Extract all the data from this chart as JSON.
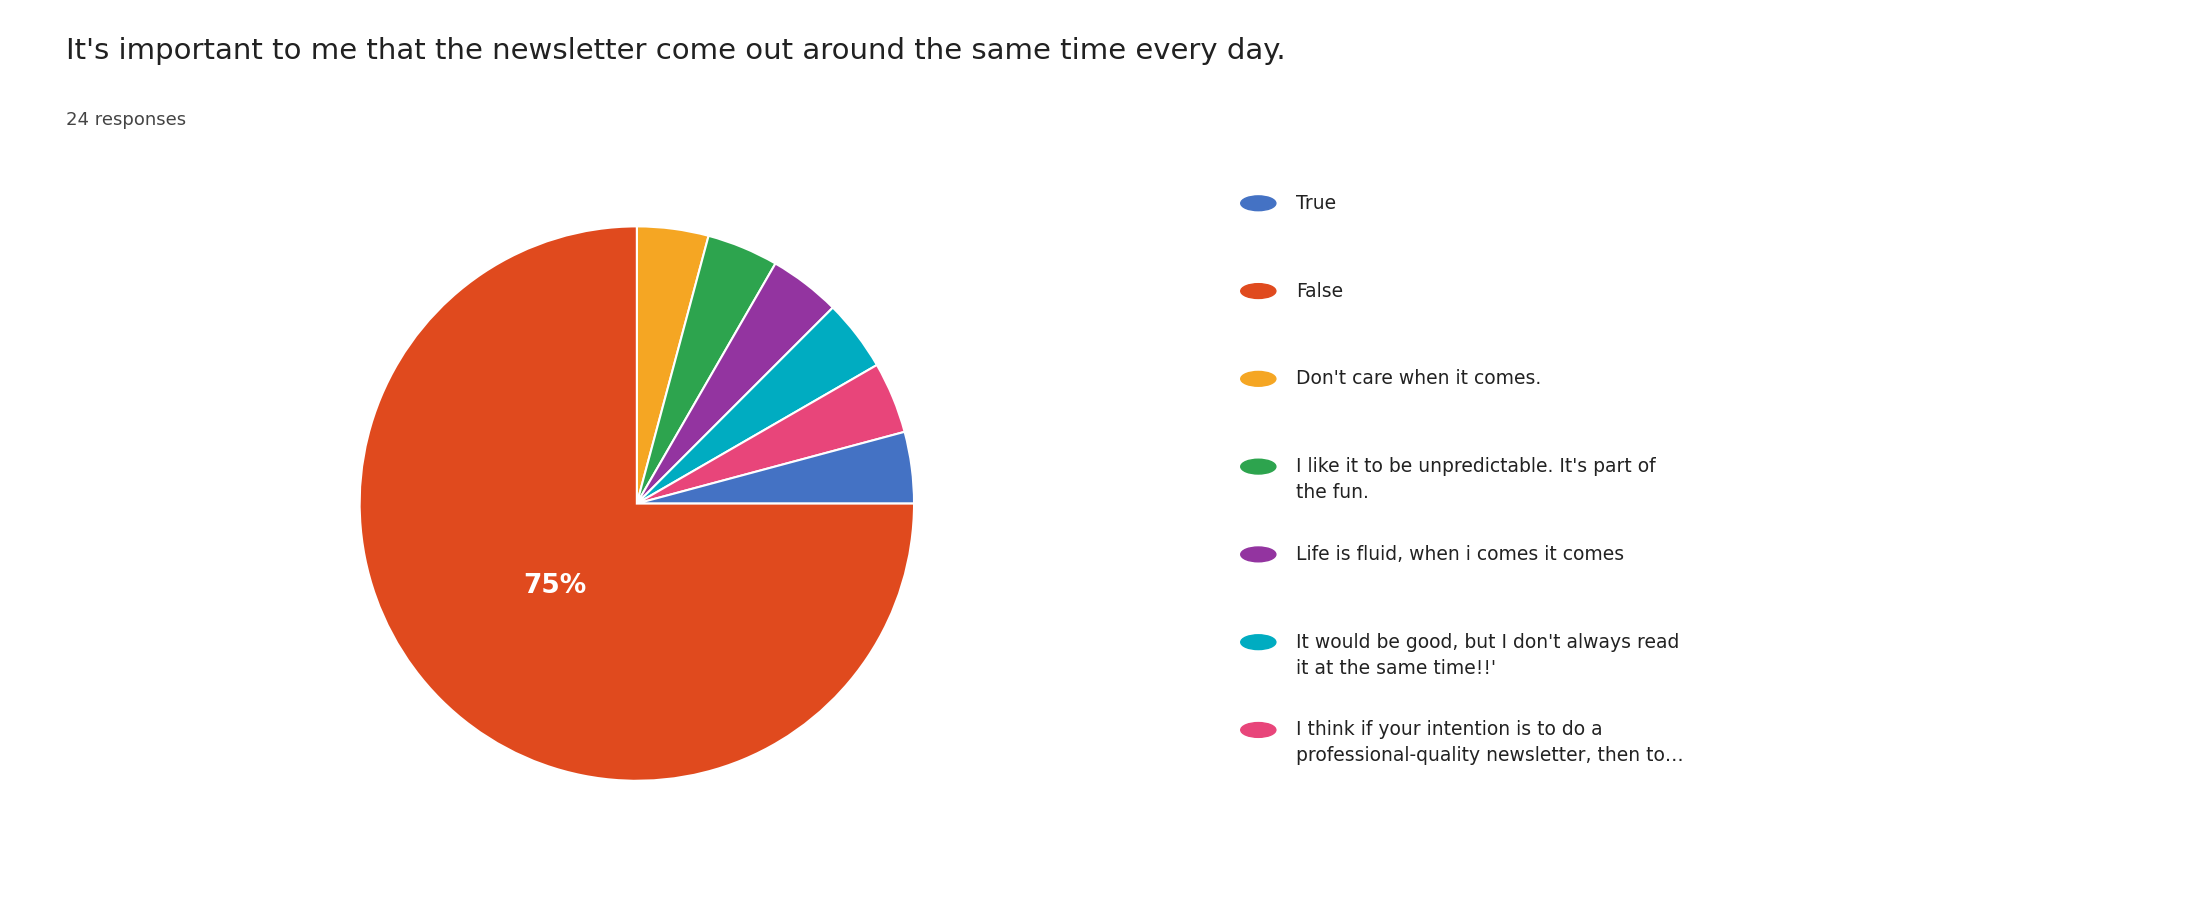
{
  "title": "It's important to me that the newsletter come out around the same time every day.",
  "subtitle": "24 responses",
  "legend_labels": [
    "True",
    "False",
    "Don't care when it comes.",
    "I like it to be unpredictable. It's part of\nthe fun.",
    "Life is fluid, when i comes it comes",
    "It would be good, but I don't always read\nit at the same time!!'",
    "I think if your intention is to do a\nprofessional-quality newsletter, then to…"
  ],
  "values": [
    1,
    18,
    1,
    1,
    1,
    1,
    1
  ],
  "colors": [
    "#4472c4",
    "#e04a1e",
    "#f5a623",
    "#2da44e",
    "#9334a0",
    "#00acc1",
    "#e8457a"
  ],
  "pct_label_value": "75%",
  "background_color": "#ffffff",
  "title_fontsize": 21,
  "subtitle_fontsize": 13,
  "legend_fontsize": 13.5
}
